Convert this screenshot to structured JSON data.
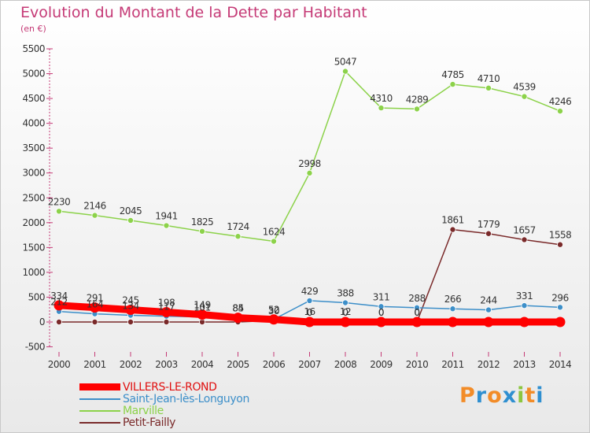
{
  "title": "Evolution du Montant de la Dette par Habitant",
  "subtitle": "(en €)",
  "logo": {
    "text": "Proxiti",
    "letters": [
      "P",
      "r",
      "o",
      "x",
      "i",
      "t",
      "i"
    ],
    "colors": [
      "#f28c28",
      "#2f8fd0",
      "#f28c28",
      "#2f8fd0",
      "#8cc63f",
      "#f28c28",
      "#2f8fd0"
    ]
  },
  "chart_data": {
    "type": "line",
    "title": "Evolution du Montant de la Dette par Habitant",
    "subtitle": "(en €)",
    "x": [
      2000,
      2001,
      2002,
      2003,
      2004,
      2005,
      2006,
      2007,
      2008,
      2009,
      2010,
      2011,
      2012,
      2013,
      2014
    ],
    "ylim": [
      -500,
      5500
    ],
    "yticks": [
      -500,
      0,
      500,
      1000,
      1500,
      2000,
      2500,
      3000,
      3500,
      4000,
      4500,
      5000,
      5500
    ],
    "grid": false,
    "legend_position": "bottom-left",
    "series": [
      {
        "name": "VILLERS-LE-ROND",
        "color": "#ff0000",
        "values": [
          334,
          291,
          245,
          198,
          149,
          85,
          52,
          0,
          0,
          0,
          0,
          0,
          0,
          0,
          0
        ],
        "labels": [
          "334",
          "291",
          "245",
          "198",
          "149",
          "85",
          "52",
          "0",
          "0",
          "0",
          "0",
          "",
          "",
          "",
          ""
        ]
      },
      {
        "name": "Saint-Jean-lès-Longuyon",
        "color": "#3d8fc9",
        "values": [
          212,
          164,
          134,
          117,
          101,
          84,
          52,
          429,
          388,
          311,
          288,
          266,
          244,
          331,
          296
        ],
        "labels": [
          "212",
          "164",
          "134",
          "117",
          "101",
          "84",
          "",
          "429",
          "388",
          "311",
          "288",
          "266",
          "244",
          "331",
          "296"
        ]
      },
      {
        "name": "Marville",
        "color": "#8cd24a",
        "values": [
          2230,
          2146,
          2045,
          1941,
          1825,
          1724,
          1624,
          2998,
          5047,
          4310,
          4289,
          4785,
          4710,
          4539,
          4246
        ],
        "labels": [
          "2230",
          "2146",
          "2045",
          "1941",
          "1825",
          "1724",
          "1624",
          "2998",
          "5047",
          "4310",
          "4289",
          "4785",
          "4710",
          "4539",
          "4246"
        ]
      },
      {
        "name": "Petit-Failly",
        "color": "#7a2a2a",
        "values": [
          0,
          0,
          0,
          0,
          0,
          0,
          30,
          16,
          12,
          0,
          0,
          1861,
          1779,
          1657,
          1558
        ],
        "labels": [
          "",
          "",
          "",
          "",
          "",
          "",
          "30",
          "16",
          "12",
          "0",
          "0",
          "1861",
          "1779",
          "1657",
          "1558"
        ]
      }
    ]
  }
}
